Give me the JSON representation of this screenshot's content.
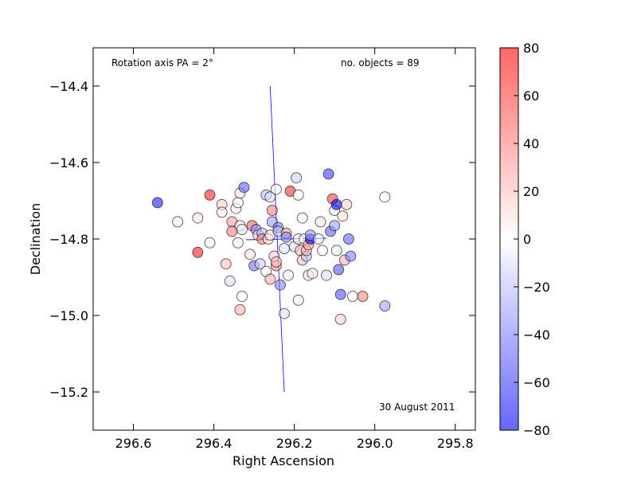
{
  "chart_data": {
    "type": "scatter",
    "xlabel": "Right Ascension",
    "ylabel": "Declination",
    "xlim": [
      296.7,
      295.75
    ],
    "ylim": [
      -15.3,
      -14.3
    ],
    "x_ticks": [
      296.6,
      296.4,
      296.2,
      296.0,
      295.8
    ],
    "x_tick_labels": [
      "296.6",
      "296.4",
      "296.2",
      "296.0",
      "295.8"
    ],
    "y_ticks": [
      -14.4,
      -14.6,
      -14.8,
      -15.0,
      -15.2
    ],
    "y_tick_labels": [
      "−14.4",
      "−14.6",
      "−14.8",
      "−15.0",
      "−15.2"
    ],
    "annotations": {
      "rotation": "Rotation axis PA = 2°",
      "count": "no. objects = 89",
      "date": "30 August 2011"
    },
    "colorbar": {
      "range": [
        -80,
        80
      ],
      "colormap": "bwr",
      "ticks": [
        80,
        60,
        40,
        20,
        0,
        -20,
        -40,
        -60,
        -80
      ],
      "tick_labels": [
        "80",
        "60",
        "40",
        "20",
        "0",
        "−20",
        "−40",
        "−60",
        "−80"
      ]
    },
    "rotation_axis": [
      [
        296.26,
        -14.4
      ],
      [
        296.225,
        -15.2
      ]
    ],
    "minor_axis": [
      [
        296.32,
        -14.802
      ],
      [
        296.12,
        -14.798
      ]
    ],
    "points": [
      {
        "x": 296.54,
        "y": -14.705,
        "v": -70
      },
      {
        "x": 296.49,
        "y": -14.755,
        "v": 5
      },
      {
        "x": 296.44,
        "y": -14.745,
        "v": 10
      },
      {
        "x": 296.44,
        "y": -14.835,
        "v": 70
      },
      {
        "x": 296.41,
        "y": -14.685,
        "v": 70
      },
      {
        "x": 296.41,
        "y": -14.81,
        "v": -5
      },
      {
        "x": 296.38,
        "y": -14.71,
        "v": 15
      },
      {
        "x": 296.38,
        "y": -14.73,
        "v": 8
      },
      {
        "x": 296.37,
        "y": -14.865,
        "v": 20
      },
      {
        "x": 296.36,
        "y": -14.91,
        "v": -10
      },
      {
        "x": 296.355,
        "y": -14.755,
        "v": 30
      },
      {
        "x": 296.355,
        "y": -14.78,
        "v": 40
      },
      {
        "x": 296.345,
        "y": -14.72,
        "v": 5
      },
      {
        "x": 296.34,
        "y": -14.705,
        "v": 0
      },
      {
        "x": 296.34,
        "y": -14.81,
        "v": 5
      },
      {
        "x": 296.335,
        "y": -14.765,
        "v": -5
      },
      {
        "x": 296.335,
        "y": -14.985,
        "v": 25
      },
      {
        "x": 296.335,
        "y": -14.68,
        "v": 10
      },
      {
        "x": 296.33,
        "y": -14.95,
        "v": 0
      },
      {
        "x": 296.33,
        "y": -14.775,
        "v": -5
      },
      {
        "x": 296.325,
        "y": -14.665,
        "v": -50
      },
      {
        "x": 296.31,
        "y": -14.84,
        "v": 10
      },
      {
        "x": 296.305,
        "y": -14.765,
        "v": 50
      },
      {
        "x": 296.3,
        "y": -14.87,
        "v": -45
      },
      {
        "x": 296.295,
        "y": -14.775,
        "v": -40
      },
      {
        "x": 296.29,
        "y": -14.79,
        "v": 15
      },
      {
        "x": 296.285,
        "y": -14.865,
        "v": -15
      },
      {
        "x": 296.28,
        "y": -14.785,
        "v": -20
      },
      {
        "x": 296.28,
        "y": -14.8,
        "v": 40
      },
      {
        "x": 296.27,
        "y": -14.885,
        "v": 0
      },
      {
        "x": 296.27,
        "y": -14.685,
        "v": -20
      },
      {
        "x": 296.265,
        "y": -14.8,
        "v": 5
      },
      {
        "x": 296.26,
        "y": -14.79,
        "v": 10
      },
      {
        "x": 296.26,
        "y": -14.905,
        "v": 25
      },
      {
        "x": 296.26,
        "y": -14.69,
        "v": -10
      },
      {
        "x": 296.255,
        "y": -14.725,
        "v": 40
      },
      {
        "x": 296.255,
        "y": -14.755,
        "v": -30
      },
      {
        "x": 296.25,
        "y": -14.845,
        "v": 15
      },
      {
        "x": 296.245,
        "y": -14.87,
        "v": 35
      },
      {
        "x": 296.245,
        "y": -14.86,
        "v": 20
      },
      {
        "x": 296.245,
        "y": -14.67,
        "v": 0
      },
      {
        "x": 296.24,
        "y": -14.77,
        "v": -40
      },
      {
        "x": 296.24,
        "y": -14.78,
        "v": -20
      },
      {
        "x": 296.235,
        "y": -14.92,
        "v": -40
      },
      {
        "x": 296.225,
        "y": -14.995,
        "v": -10
      },
      {
        "x": 296.225,
        "y": -14.825,
        "v": -10
      },
      {
        "x": 296.22,
        "y": -14.785,
        "v": 30
      },
      {
        "x": 296.22,
        "y": -14.795,
        "v": -40
      },
      {
        "x": 296.215,
        "y": -14.895,
        "v": -5
      },
      {
        "x": 296.21,
        "y": -14.675,
        "v": 65
      },
      {
        "x": 296.2,
        "y": -14.82,
        "v": -10
      },
      {
        "x": 296.195,
        "y": -14.64,
        "v": -15
      },
      {
        "x": 296.19,
        "y": -14.96,
        "v": 5
      },
      {
        "x": 296.19,
        "y": -14.8,
        "v": 5
      },
      {
        "x": 296.19,
        "y": -14.685,
        "v": 0
      },
      {
        "x": 296.185,
        "y": -14.83,
        "v": 20
      },
      {
        "x": 296.18,
        "y": -14.855,
        "v": 20
      },
      {
        "x": 296.18,
        "y": -14.745,
        "v": 5
      },
      {
        "x": 296.175,
        "y": -14.8,
        "v": 0
      },
      {
        "x": 296.17,
        "y": -14.845,
        "v": -20
      },
      {
        "x": 296.17,
        "y": -14.83,
        "v": 25
      },
      {
        "x": 296.165,
        "y": -14.895,
        "v": 10
      },
      {
        "x": 296.165,
        "y": -14.815,
        "v": 30
      },
      {
        "x": 296.16,
        "y": -14.8,
        "v": -80
      },
      {
        "x": 296.16,
        "y": -14.79,
        "v": -30
      },
      {
        "x": 296.155,
        "y": -14.89,
        "v": 5
      },
      {
        "x": 296.14,
        "y": -14.8,
        "v": -5
      },
      {
        "x": 296.135,
        "y": -14.755,
        "v": 10
      },
      {
        "x": 296.13,
        "y": -14.83,
        "v": 0
      },
      {
        "x": 296.12,
        "y": -14.895,
        "v": -10
      },
      {
        "x": 296.115,
        "y": -14.63,
        "v": -60
      },
      {
        "x": 296.11,
        "y": -14.78,
        "v": -50
      },
      {
        "x": 296.105,
        "y": -14.695,
        "v": 60
      },
      {
        "x": 296.1,
        "y": -14.725,
        "v": -5
      },
      {
        "x": 296.1,
        "y": -14.765,
        "v": -30
      },
      {
        "x": 296.095,
        "y": -14.83,
        "v": -5
      },
      {
        "x": 296.095,
        "y": -14.71,
        "v": -80
      },
      {
        "x": 296.09,
        "y": -14.88,
        "v": -55
      },
      {
        "x": 296.085,
        "y": -15.01,
        "v": 15
      },
      {
        "x": 296.085,
        "y": -14.945,
        "v": -55
      },
      {
        "x": 296.08,
        "y": -14.74,
        "v": 10
      },
      {
        "x": 296.075,
        "y": -14.855,
        "v": 25
      },
      {
        "x": 296.07,
        "y": -14.71,
        "v": 15
      },
      {
        "x": 296.065,
        "y": -14.8,
        "v": -50
      },
      {
        "x": 296.06,
        "y": -14.845,
        "v": -40
      },
      {
        "x": 296.055,
        "y": -14.95,
        "v": 0
      },
      {
        "x": 296.03,
        "y": -14.95,
        "v": 40
      },
      {
        "x": 295.975,
        "y": -14.69,
        "v": 0
      },
      {
        "x": 295.975,
        "y": -14.975,
        "v": -30
      }
    ]
  }
}
